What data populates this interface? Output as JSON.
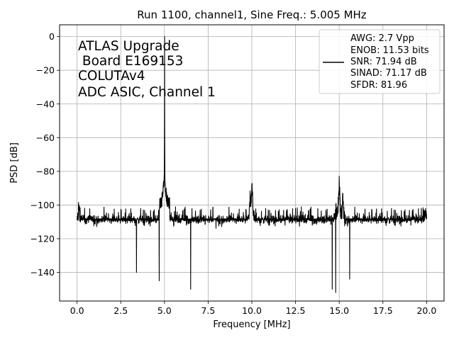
{
  "chart_data": {
    "type": "line",
    "title": "Run 1100, channel1, Sine Freq.: 5.005 MHz",
    "xlabel": "Frequency [MHz]",
    "ylabel": "PSD [dB]",
    "xlim": [
      -1.0,
      21.0
    ],
    "ylim": [
      -157,
      7
    ],
    "xticks": [
      0.0,
      2.5,
      5.0,
      7.5,
      10.0,
      12.5,
      15.0,
      17.5,
      20.0
    ],
    "xtick_labels": [
      "0.0",
      "2.5",
      "5.0",
      "7.5",
      "10.0",
      "12.5",
      "15.0",
      "17.5",
      "20.0"
    ],
    "yticks": [
      0,
      -20,
      -40,
      -60,
      -80,
      -100,
      -120,
      -140
    ],
    "ytick_labels": [
      "0",
      "−20",
      "−40",
      "−60",
      "−80",
      "−100",
      "−120",
      "−140"
    ],
    "grid": true,
    "line_color": "#000000",
    "annotation_lines": [
      "ATLAS Upgrade",
      " Board E169153",
      "COLUTAv4",
      "ADC ASIC, Channel 1"
    ],
    "legend_placement": "upper right",
    "legend_lines": [
      "AWG: 2.7 Vpp",
      "ENOB: 11.53 bits",
      "SNR: 71.94 dB",
      "SINAD: 71.17 dB",
      "SFDR: 81.96"
    ],
    "series": [
      {
        "noise_floor_db": -113,
        "noise_band_db": [
          -127,
          -104
        ],
        "fundamental": {
          "x": 5.005,
          "y": 0
        },
        "spurs": [
          {
            "x": 4.9,
            "y": -95
          },
          {
            "x": 5.1,
            "y": -93
          },
          {
            "x": 10.0,
            "y": -84
          },
          {
            "x": 9.9,
            "y": -95
          },
          {
            "x": 15.0,
            "y": -83
          },
          {
            "x": 15.2,
            "y": -95
          },
          {
            "x": 14.8,
            "y": -100
          },
          {
            "x": 0.1,
            "y": -100
          },
          {
            "x": 19.9,
            "y": -101
          }
        ],
        "dips": [
          {
            "x": 3.4,
            "y": -140
          },
          {
            "x": 4.7,
            "y": -145
          },
          {
            "x": 6.5,
            "y": -150
          },
          {
            "x": 14.6,
            "y": -150
          },
          {
            "x": 14.8,
            "y": -152
          },
          {
            "x": 15.6,
            "y": -144
          }
        ]
      }
    ]
  }
}
